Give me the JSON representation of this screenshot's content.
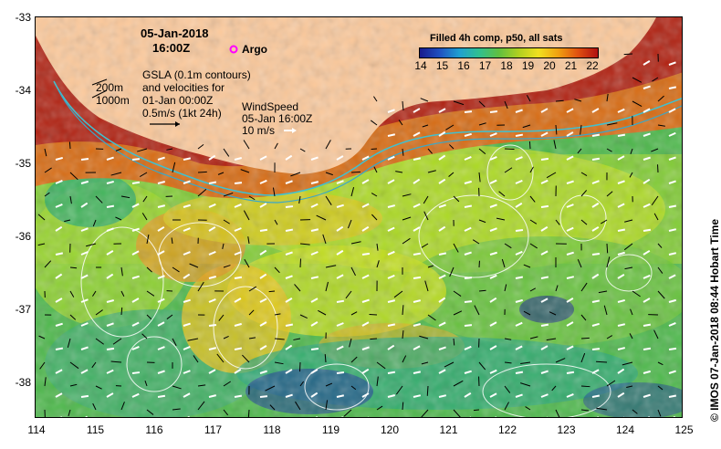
{
  "map": {
    "date": "05-Jan-2018",
    "time": "16:00Z",
    "argo_label": "Argo",
    "gsla_lines": [
      "GSLA (0.1m contours)",
      "and velocities for",
      "01-Jan 00:00Z",
      "0.5m/s (1kt 24h)"
    ],
    "depth_labels": [
      "200m",
      "1000m"
    ],
    "wind_lines": [
      "WindSpeed",
      "05-Jan 16:00Z",
      "10 m/s"
    ],
    "colorbar_title": "Filled 4h comp, p50, all sats",
    "colorbar_ticks": [
      "14",
      "15",
      "16",
      "17",
      "18",
      "19",
      "20",
      "21",
      "22"
    ],
    "lat_ticks": [
      "-33",
      "-34",
      "-35",
      "-36",
      "-37",
      "-38"
    ],
    "lon_ticks": [
      "114",
      "115",
      "116",
      "117",
      "118",
      "119",
      "120",
      "121",
      "122",
      "123",
      "124",
      "125"
    ],
    "credit": "© IMOS 07-Jan-2018 08:44 Hobart Time",
    "colors": {
      "land": "#fcc99b",
      "argo": "#ff00ff",
      "isobath": "#40c0d0"
    }
  }
}
